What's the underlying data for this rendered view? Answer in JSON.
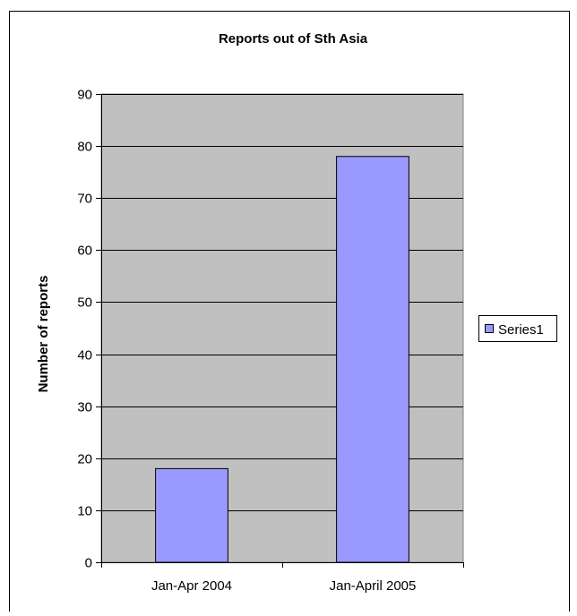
{
  "chart_data": {
    "type": "bar",
    "title": "Reports out of Sth Asia",
    "xlabel": "",
    "ylabel": "Number of reports",
    "categories": [
      "Jan-Apr 2004",
      "Jan-April 2005"
    ],
    "series": [
      {
        "name": "Series1",
        "values": [
          18,
          78
        ],
        "color": "#9999ff"
      }
    ],
    "ylim": [
      0,
      90
    ],
    "yticks": [
      0,
      10,
      20,
      30,
      40,
      50,
      60,
      70,
      80,
      90
    ],
    "grid": true,
    "legend_position": "right",
    "plot_background": "#c0c0c0"
  }
}
